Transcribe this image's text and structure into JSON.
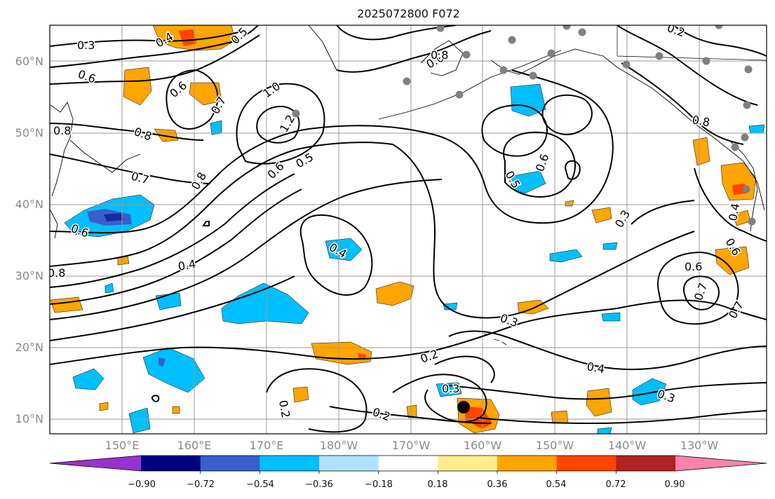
{
  "title": "2025072800 F072",
  "lat_labels": [
    "60°N",
    "50°N",
    "40°N",
    "30°N",
    "20°N",
    "10°N"
  ],
  "lon_labels": [
    "150°E",
    "160°E",
    "170°E",
    "180°W",
    "170°W",
    "160°W",
    "150°W",
    "140°W",
    "130°W"
  ],
  "contour_labels": [
    "0.3",
    "0.4",
    "0.5",
    "0.6",
    "0.6",
    "0.7",
    "1.0",
    "1.2",
    "0.8",
    "0.8",
    "0.8",
    "0.6",
    "0.7",
    "0.6",
    "0.5",
    "0.4",
    "0.6",
    "0.8",
    "0.7",
    "0.4",
    "0.2",
    "0.2",
    "0.3",
    "0.3",
    "0.4",
    "0.3",
    "0.2",
    "0.5",
    "0.6",
    "0.3",
    "0.6",
    "0.7",
    "0.4",
    "0.2",
    "0.8",
    "0.6",
    "0.8"
  ],
  "colorbar": {
    "ticks": [
      "−0.90",
      "−0.72",
      "−0.54",
      "−0.36",
      "−0.18",
      "0.18",
      "0.36",
      "0.54",
      "0.72",
      "0.90"
    ],
    "colors": [
      "#9932CC",
      "#000080",
      "#3A5FCD",
      "#00BFFF",
      "#B0E2FF",
      "#FFFFFF",
      "#FFEC8B",
      "#FFA500",
      "#FF4500",
      "#B22222",
      "#FF82AB"
    ]
  },
  "markers": {
    "storm_center": "large black dot near 12°N 162°W",
    "stations": "gray dots over Alaska and NW North America"
  }
}
